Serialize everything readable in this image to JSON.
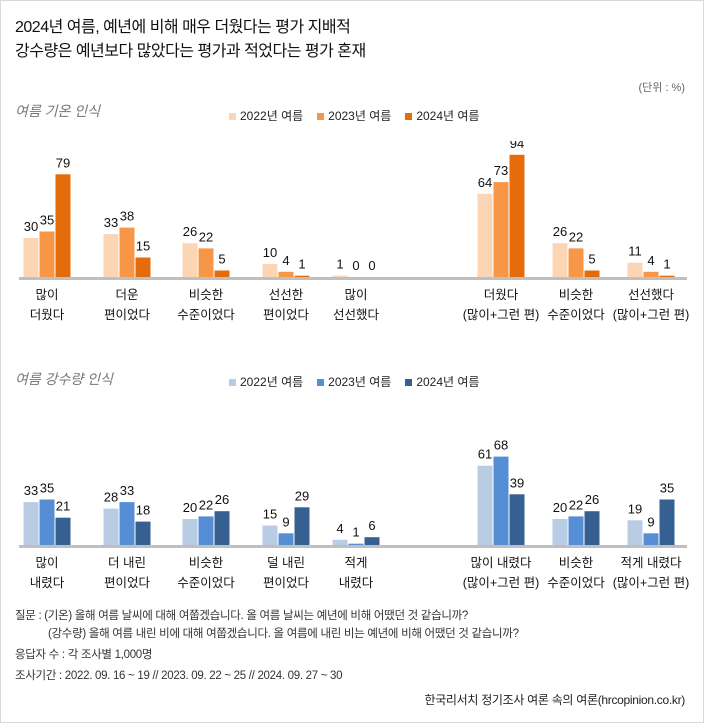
{
  "title": [
    "2024년 여름, 예년에 비해 매우 더웠다는 평가 지배적",
    "강수량은 예년보다 많았다는 평가과 적었다는 평가 혼재"
  ],
  "unit": "(단위 : %)",
  "chart_data": [
    {
      "type": "bar",
      "section_title": "여름 기온 인식",
      "legend_position": "top-center",
      "categories": [
        [
          "많이",
          "더웠다"
        ],
        [
          "더운",
          "편이었다"
        ],
        [
          "비슷한",
          "수준이었다"
        ],
        [
          "선선한",
          "편이었다"
        ],
        [
          "많이",
          "선선했다"
        ],
        [
          "더웠다",
          "(많이+그런 편)"
        ],
        [
          "비슷한",
          "수준이었다"
        ],
        [
          "선선했다",
          "(많이+그런 편)"
        ]
      ],
      "series": [
        {
          "name": "2022년 여름",
          "color": "#FCD5B5",
          "values": [
            30,
            33,
            26,
            10,
            1,
            64,
            26,
            11
          ]
        },
        {
          "name": "2023년 여름",
          "color": "#F79646",
          "values": [
            35,
            38,
            22,
            4,
            0,
            73,
            22,
            4
          ]
        },
        {
          "name": "2024년 여름",
          "color": "#E46C0A",
          "values": [
            79,
            15,
            5,
            1,
            0,
            94,
            5,
            1
          ]
        }
      ]
    },
    {
      "type": "bar",
      "section_title": "여름 강수량 인식",
      "legend_position": "top-center",
      "categories": [
        [
          "많이",
          "내렸다"
        ],
        [
          "더 내린",
          "편이었다"
        ],
        [
          "비슷한",
          "수준이었다"
        ],
        [
          "덜 내린",
          "편이었다"
        ],
        [
          "적게",
          "내렸다"
        ],
        [
          "많이 내렸다",
          "(많이+그런 편)"
        ],
        [
          "비슷한",
          "수준이었다"
        ],
        [
          "적게 내렸다",
          "(많이+그런 편)"
        ]
      ],
      "series": [
        {
          "name": "2022년 여름",
          "color": "#B8CCE4",
          "values": [
            33,
            28,
            20,
            15,
            4,
            61,
            20,
            19
          ]
        },
        {
          "name": "2023년 여름",
          "color": "#558ED5",
          "values": [
            35,
            33,
            22,
            9,
            1,
            68,
            22,
            9
          ]
        },
        {
          "name": "2024년 여름",
          "color": "#366092",
          "values": [
            21,
            18,
            26,
            29,
            6,
            39,
            26,
            35
          ]
        }
      ]
    }
  ],
  "footer": {
    "question1": "질문 :  (기온) 올해 여름 날씨에 대해 여쭙겠습니다. 올 여름 날씨는 예년에 비해 어땠던 것 같습니까?",
    "question2": "(강수량) 올해 여름 내린 비에 대해 여쭙겠습니다. 올 여름에 내린 비는 예년에 비해 어땠던 것 같습니까?",
    "respondents": "응답자 수 : 각 조사별 1,000명",
    "period": "조사기간 : 2022. 09. 16 ~ 19 // 2023. 09. 22 ~ 25 // 2024. 09. 27 ~ 30",
    "source": "한국리서치 정기조사 여론 속의 여론(hrcopinion.co.kr)"
  }
}
